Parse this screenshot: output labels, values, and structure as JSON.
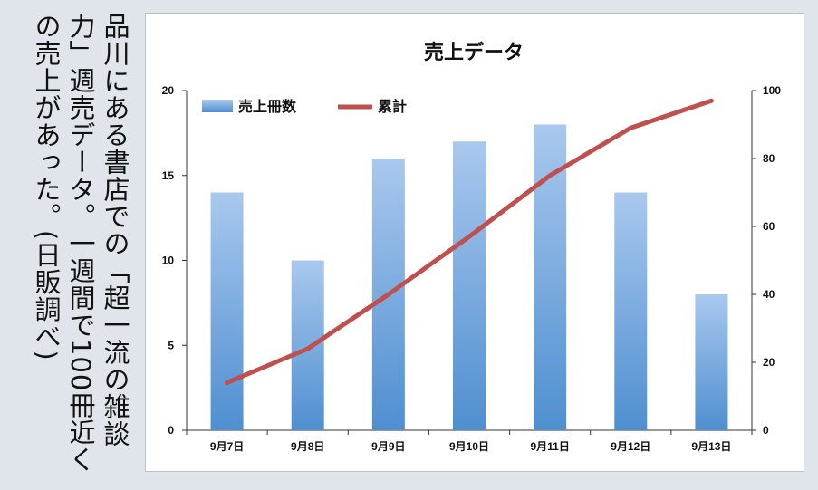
{
  "caption": "品川にある書店での「超一流の雑談力」週売データ。一週間で100冊近くの売上があった。(日販調べ)",
  "chart_data": {
    "type": "bar",
    "title": "売上データ",
    "categories": [
      "9月7日",
      "9月8日",
      "9月9日",
      "9月10日",
      "9月11日",
      "9月12日",
      "9月13日"
    ],
    "series": [
      {
        "name": "売上冊数",
        "type": "bar",
        "axis": "left",
        "values": [
          14,
          10,
          16,
          17,
          18,
          14,
          8
        ],
        "color": "#6fa3d8"
      },
      {
        "name": "累計",
        "type": "line",
        "axis": "right",
        "values": [
          14,
          24,
          40,
          57,
          75,
          89,
          97
        ],
        "color": "#c0504d"
      }
    ],
    "ylim": [
      0,
      20
    ],
    "yticks": [
      0,
      5,
      10,
      15,
      20
    ],
    "y2lim": [
      0,
      100
    ],
    "y2ticks": [
      0,
      20,
      40,
      60,
      80,
      100
    ],
    "legend_position": "top-left",
    "grid": false
  }
}
